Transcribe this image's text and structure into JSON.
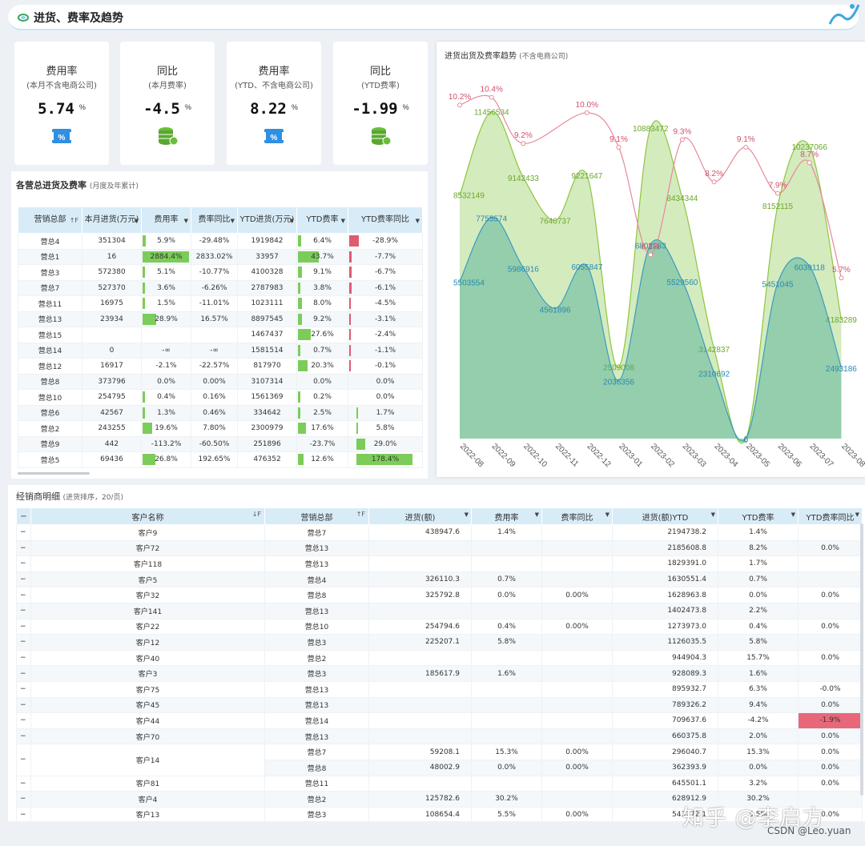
{
  "header": {
    "title": "进货、费率及趋势"
  },
  "kpis": [
    {
      "title": "费用率",
      "subtitle": "(本月不含电商公司)",
      "value": "5.74",
      "unit": "%",
      "icon": "ticket-percent-icon"
    },
    {
      "title": "同比",
      "subtitle": "(本月费率)",
      "value": "-4.5",
      "unit": "%",
      "icon": "coins-stack-icon"
    },
    {
      "title": "费用率",
      "subtitle": "(YTD、不含电商公司)",
      "value": "8.22",
      "unit": "%",
      "icon": "ticket-percent-icon"
    },
    {
      "title": "同比",
      "subtitle": "(YTD费率)",
      "value": "-1.99",
      "unit": "%",
      "icon": "coins-stack-icon"
    }
  ],
  "dept": {
    "title": "各营总进货及费率",
    "title_note": "(月度及年累计)",
    "headers": [
      "营销总部",
      "本月进货(万元)",
      "费用率",
      "费率同比",
      "YTD进货(万元)",
      "YTD费率",
      "YTD费率同比"
    ],
    "rows": [
      [
        "营总4",
        "351304",
        "5.9%",
        "-29.48%",
        "1919842",
        "6.4%",
        "-28.9%"
      ],
      [
        "营总1",
        "16",
        "2884.4%",
        "2833.02%",
        "33957",
        "43.7%",
        "-7.7%"
      ],
      [
        "营总3",
        "572380",
        "5.1%",
        "-10.77%",
        "4100328",
        "9.1%",
        "-6.7%"
      ],
      [
        "营总7",
        "527370",
        "3.6%",
        "-6.26%",
        "2787983",
        "3.8%",
        "-6.1%"
      ],
      [
        "营总11",
        "16975",
        "1.5%",
        "-11.01%",
        "1023111",
        "8.0%",
        "-4.5%"
      ],
      [
        "营总13",
        "23934",
        "28.9%",
        "16.57%",
        "8897545",
        "9.2%",
        "-3.1%"
      ],
      [
        "营总15",
        "",
        "",
        "",
        "1467437",
        "27.6%",
        "-2.4%"
      ],
      [
        "营总14",
        "0",
        "-∞",
        "-∞",
        "1581514",
        "0.7%",
        "-1.1%"
      ],
      [
        "营总12",
        "16917",
        "-2.1%",
        "-22.57%",
        "817970",
        "20.3%",
        "-0.1%"
      ],
      [
        "营总8",
        "373796",
        "0.0%",
        "0.00%",
        "3107314",
        "0.0%",
        "0.0%"
      ],
      [
        "营总10",
        "254795",
        "0.4%",
        "0.16%",
        "1561369",
        "0.2%",
        "0.0%"
      ],
      [
        "营总6",
        "42567",
        "1.3%",
        "0.46%",
        "334642",
        "2.5%",
        "1.7%"
      ],
      [
        "营总2",
        "243255",
        "19.6%",
        "7.80%",
        "2300979",
        "17.6%",
        "5.8%"
      ],
      [
        "营总9",
        "442",
        "-113.2%",
        "-60.50%",
        "251896",
        "-23.7%",
        "29.0%"
      ],
      [
        "营总5",
        "69436",
        "26.8%",
        "192.65%",
        "476352",
        "12.6%",
        "178.4%"
      ]
    ]
  },
  "chart_data": {
    "type": "area",
    "title": "进货出货及费率趋势",
    "title_note": "(不含电商公司)",
    "categories": [
      "2022-08",
      "2022-09",
      "2022-10",
      "2022-11",
      "2022-12",
      "2023-01",
      "2023-02",
      "2023-03",
      "2023-04",
      "2023-05",
      "2023-06",
      "2023-07",
      "2023-08"
    ],
    "series": [
      {
        "values": [
          8532149,
          11456534,
          9142433,
          7640737,
          9221647,
          2509008,
          10883472,
          8434344,
          3142837,
          0,
          8152115,
          10237066,
          4183289
        ],
        "color": "#8dc63f"
      },
      {
        "values": [
          5503554,
          7755574,
          5986916,
          4561896,
          6055847,
          2036356,
          6802283,
          5529560,
          2310692,
          0,
          5451045,
          6039118,
          2493186
        ],
        "color": "#3a9bc0"
      },
      {
        "values": [
          10.2,
          10.4,
          9.2,
          null,
          10.0,
          9.1,
          6.3,
          9.3,
          8.2,
          9.1,
          7.9,
          8.7,
          5.7
        ],
        "color": "#e88898",
        "unit": "%"
      }
    ],
    "rate_labels": [
      "10.2%",
      "10.4%",
      "9.2%",
      "10.0%",
      "9.1%",
      "6.3%",
      "9.3%",
      "8.2%",
      "9.1%",
      "7.9%",
      "8.7%",
      "5.7%"
    ],
    "ylim": [
      0,
      12000000
    ]
  },
  "dealer": {
    "title": "经销商明细",
    "title_note": "(进货排序，20/页)",
    "headers": [
      "客户名称",
      "营销总部",
      "进货(额)",
      "费用率",
      "费率同比",
      "进货(额)YTD",
      "YTD费率",
      "YTD费率同比"
    ],
    "rows": [
      [
        "客户9",
        "营总7",
        "438947.6",
        "1.4%",
        "",
        "2194738.2",
        "1.4%",
        ""
      ],
      [
        "客户72",
        "营总13",
        "",
        "",
        "",
        "2185608.8",
        "8.2%",
        "0.0%"
      ],
      [
        "客户118",
        "营总13",
        "",
        "",
        "",
        "1829391.0",
        "1.7%",
        ""
      ],
      [
        "客户5",
        "营总4",
        "326110.3",
        "0.7%",
        "",
        "1630551.4",
        "0.7%",
        ""
      ],
      [
        "客户32",
        "营总8",
        "325792.8",
        "0.0%",
        "0.00%",
        "1628963.8",
        "0.0%",
        "0.0%"
      ],
      [
        "客户141",
        "营总13",
        "",
        "",
        "",
        "1402473.8",
        "2.2%",
        ""
      ],
      [
        "客户22",
        "营总10",
        "254794.6",
        "0.4%",
        "0.00%",
        "1273973.0",
        "0.4%",
        "0.0%"
      ],
      [
        "客户12",
        "营总3",
        "225207.1",
        "5.8%",
        "",
        "1126035.5",
        "5.8%",
        ""
      ],
      [
        "客户40",
        "营总2",
        "",
        "",
        "",
        "944904.3",
        "15.7%",
        "0.0%"
      ],
      [
        "客户3",
        "营总3",
        "185617.9",
        "1.6%",
        "",
        "928089.3",
        "1.6%",
        ""
      ],
      [
        "客户75",
        "营总13",
        "",
        "",
        "",
        "895932.7",
        "6.3%",
        "-0.0%"
      ],
      [
        "客户45",
        "营总13",
        "",
        "",
        "",
        "789326.2",
        "9.4%",
        "0.0%"
      ],
      [
        "客户44",
        "营总14",
        "",
        "",
        "",
        "709637.6",
        "-4.2%",
        "-1.9%"
      ],
      [
        "客户70",
        "营总13",
        "",
        "",
        "",
        "660375.8",
        "2.0%",
        "0.0%"
      ],
      [
        "客户14",
        "营总7",
        "59208.1",
        "15.3%",
        "0.00%",
        "296040.7",
        "15.3%",
        "0.0%"
      ],
      [
        "",
        "营总8",
        "48002.9",
        "0.0%",
        "0.00%",
        "362393.9",
        "0.0%",
        "0.0%"
      ],
      [
        "客户81",
        "营总11",
        "",
        "",
        "",
        "645501.1",
        "3.2%",
        "0.0%"
      ],
      [
        "客户4",
        "营总2",
        "125782.6",
        "30.2%",
        "",
        "628912.9",
        "30.2%",
        ""
      ],
      [
        "客户13",
        "营总3",
        "108654.4",
        "5.5%",
        "0.00%",
        "543272.1",
        "5.5%",
        "0.0%"
      ]
    ]
  },
  "watermark": "知乎 @李启方",
  "credit": "CSDN @Leo.yuan"
}
